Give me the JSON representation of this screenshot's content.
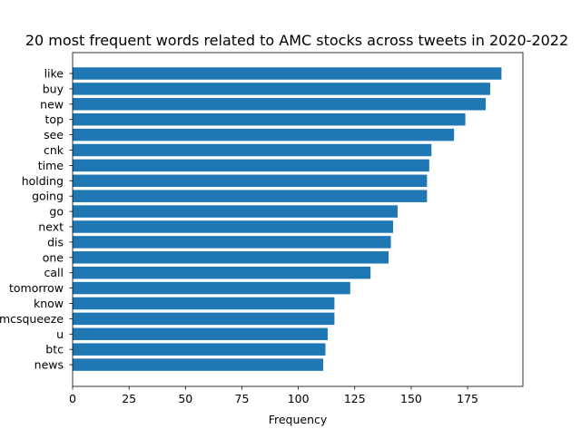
{
  "chart_data": {
    "type": "bar",
    "orientation": "horizontal",
    "title": "20 most frequent words related to AMC stocks across tweets in 2020-2022",
    "xlabel": "Frequency",
    "ylabel": "",
    "categories": [
      "like",
      "buy",
      "new",
      "top",
      "see",
      "cnk",
      "time",
      "holding",
      "going",
      "go",
      "next",
      "dis",
      "one",
      "call",
      "tomorrow",
      "know",
      "amcsqueeze",
      "u",
      "btc",
      "news"
    ],
    "values": [
      190,
      185,
      183,
      174,
      169,
      159,
      158,
      157,
      157,
      144,
      142,
      141,
      140,
      132,
      123,
      116,
      116,
      113,
      112,
      111
    ],
    "xlim": [
      0,
      199.5
    ],
    "xticks": [
      0,
      25,
      50,
      75,
      100,
      125,
      150,
      175
    ],
    "grid": false,
    "colors": {
      "bar": "#1f77b4",
      "axis": "#000000",
      "background": "#ffffff"
    }
  }
}
